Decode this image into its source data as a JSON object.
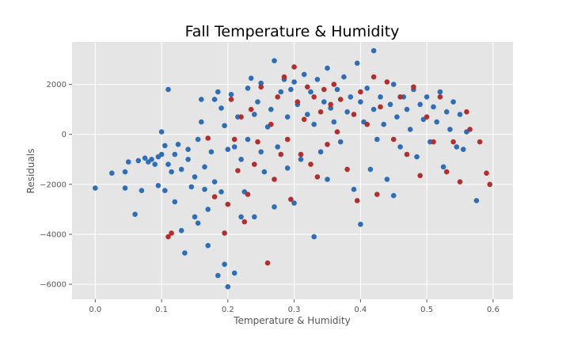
{
  "chart_data": {
    "type": "scatter",
    "title": "Fall Temperature & Humidity",
    "xlabel": "Temperature & Humidity",
    "ylabel": "Residuals",
    "xlim": [
      -0.035,
      0.63
    ],
    "ylim": [
      -6600,
      3700
    ],
    "x_ticks": [
      0.0,
      0.1,
      0.2,
      0.3,
      0.4,
      0.5,
      0.6
    ],
    "x_tick_labels": [
      "0.0",
      "0.1",
      "0.2",
      "0.3",
      "0.4",
      "0.5",
      "0.6"
    ],
    "y_ticks": [
      -6000,
      -4000,
      -2000,
      0,
      2000
    ],
    "y_tick_labels": [
      "−6000",
      "−4000",
      "−2000",
      "0",
      "2000"
    ],
    "grid": true,
    "background": "#e5e5e5",
    "series": [
      {
        "color": "#2f6db5",
        "points": [
          [
            0.0,
            -2150
          ],
          [
            0.025,
            -1550
          ],
          [
            0.045,
            -1500
          ],
          [
            0.045,
            -2150
          ],
          [
            0.05,
            -1100
          ],
          [
            0.06,
            -3200
          ],
          [
            0.065,
            -1050
          ],
          [
            0.07,
            -2250
          ],
          [
            0.075,
            -950
          ],
          [
            0.08,
            -1100
          ],
          [
            0.085,
            -1000
          ],
          [
            0.09,
            -1200
          ],
          [
            0.095,
            -2050
          ],
          [
            0.095,
            -900
          ],
          [
            0.1,
            100
          ],
          [
            0.1,
            -800
          ],
          [
            0.105,
            -2250
          ],
          [
            0.105,
            -450
          ],
          [
            0.11,
            -1200
          ],
          [
            0.11,
            1800
          ],
          [
            0.115,
            -1500
          ],
          [
            0.12,
            -2700
          ],
          [
            0.12,
            -800
          ],
          [
            0.125,
            -400
          ],
          [
            0.13,
            -1400
          ],
          [
            0.13,
            -3850
          ],
          [
            0.135,
            -4750
          ],
          [
            0.14,
            -600
          ],
          [
            0.14,
            -1000
          ],
          [
            0.145,
            -2100
          ],
          [
            0.15,
            -1700
          ],
          [
            0.15,
            -3300
          ],
          [
            0.155,
            -3550
          ],
          [
            0.155,
            -200
          ],
          [
            0.16,
            500
          ],
          [
            0.16,
            1400
          ],
          [
            0.165,
            -2200
          ],
          [
            0.165,
            -1300
          ],
          [
            0.17,
            -4450
          ],
          [
            0.17,
            -3000
          ],
          [
            0.175,
            -700
          ],
          [
            0.18,
            1400
          ],
          [
            0.18,
            -1900
          ],
          [
            0.185,
            -5650
          ],
          [
            0.185,
            1700
          ],
          [
            0.19,
            1050
          ],
          [
            0.19,
            -2300
          ],
          [
            0.195,
            -5200
          ],
          [
            0.195,
            350
          ],
          [
            0.2,
            -6100
          ],
          [
            0.2,
            -600
          ],
          [
            0.205,
            1600
          ],
          [
            0.21,
            -500
          ],
          [
            0.21,
            -5550
          ],
          [
            0.215,
            700
          ],
          [
            0.22,
            -1000
          ],
          [
            0.22,
            -3300
          ],
          [
            0.225,
            -2300
          ],
          [
            0.23,
            1850
          ],
          [
            0.23,
            -200
          ],
          [
            0.235,
            2250
          ],
          [
            0.24,
            -3300
          ],
          [
            0.24,
            800
          ],
          [
            0.245,
            1300
          ],
          [
            0.25,
            -700
          ],
          [
            0.25,
            2050
          ],
          [
            0.255,
            -1500
          ],
          [
            0.26,
            300
          ],
          [
            0.265,
            1000
          ],
          [
            0.27,
            2950
          ],
          [
            0.27,
            -2900
          ],
          [
            0.275,
            -500
          ],
          [
            0.28,
            1700
          ],
          [
            0.285,
            2200
          ],
          [
            0.29,
            -1350
          ],
          [
            0.29,
            700
          ],
          [
            0.295,
            1800
          ],
          [
            0.3,
            2100
          ],
          [
            0.3,
            -2750
          ],
          [
            0.305,
            1200
          ],
          [
            0.31,
            -1000
          ],
          [
            0.315,
            2400
          ],
          [
            0.32,
            800
          ],
          [
            0.325,
            1700
          ],
          [
            0.33,
            -4100
          ],
          [
            0.33,
            400
          ],
          [
            0.335,
            2200
          ],
          [
            0.34,
            -700
          ],
          [
            0.345,
            1300
          ],
          [
            0.35,
            2650
          ],
          [
            0.35,
            -1800
          ],
          [
            0.355,
            1050
          ],
          [
            0.36,
            500
          ],
          [
            0.365,
            1800
          ],
          [
            0.37,
            -300
          ],
          [
            0.375,
            2300
          ],
          [
            0.38,
            900
          ],
          [
            0.385,
            1500
          ],
          [
            0.39,
            -2200
          ],
          [
            0.395,
            2850
          ],
          [
            0.4,
            -3600
          ],
          [
            0.4,
            1300
          ],
          [
            0.405,
            500
          ],
          [
            0.41,
            1850
          ],
          [
            0.415,
            -1400
          ],
          [
            0.42,
            3350
          ],
          [
            0.42,
            1000
          ],
          [
            0.425,
            -200
          ],
          [
            0.43,
            1500
          ],
          [
            0.435,
            400
          ],
          [
            0.44,
            -1800
          ],
          [
            0.445,
            1200
          ],
          [
            0.45,
            -2450
          ],
          [
            0.45,
            2000
          ],
          [
            0.455,
            700
          ],
          [
            0.46,
            -500
          ],
          [
            0.465,
            1500
          ],
          [
            0.47,
            1000
          ],
          [
            0.475,
            200
          ],
          [
            0.48,
            1800
          ],
          [
            0.485,
            -900
          ],
          [
            0.49,
            1200
          ],
          [
            0.495,
            600
          ],
          [
            0.5,
            1500
          ],
          [
            0.505,
            -300
          ],
          [
            0.51,
            1100
          ],
          [
            0.515,
            500
          ],
          [
            0.52,
            1700
          ],
          [
            0.525,
            -1300
          ],
          [
            0.53,
            900
          ],
          [
            0.535,
            200
          ],
          [
            0.54,
            1300
          ],
          [
            0.545,
            -500
          ],
          [
            0.55,
            800
          ],
          [
            0.555,
            -600
          ],
          [
            0.56,
            100
          ],
          [
            0.575,
            -2650
          ]
        ]
      },
      {
        "color": "#b03030",
        "points": [
          [
            0.11,
            -4100
          ],
          [
            0.115,
            -3950
          ],
          [
            0.17,
            -150
          ],
          [
            0.18,
            -2500
          ],
          [
            0.195,
            -3950
          ],
          [
            0.2,
            -2800
          ],
          [
            0.205,
            1400
          ],
          [
            0.21,
            -200
          ],
          [
            0.215,
            -1450
          ],
          [
            0.22,
            700
          ],
          [
            0.225,
            -3500
          ],
          [
            0.23,
            -2400
          ],
          [
            0.235,
            1000
          ],
          [
            0.24,
            -1200
          ],
          [
            0.245,
            -300
          ],
          [
            0.25,
            1900
          ],
          [
            0.26,
            -5150
          ],
          [
            0.265,
            400
          ],
          [
            0.27,
            -1800
          ],
          [
            0.275,
            1500
          ],
          [
            0.28,
            -800
          ],
          [
            0.285,
            2300
          ],
          [
            0.29,
            -200
          ],
          [
            0.295,
            -2600
          ],
          [
            0.3,
            2700
          ],
          [
            0.305,
            1300
          ],
          [
            0.31,
            -800
          ],
          [
            0.315,
            600
          ],
          [
            0.32,
            1900
          ],
          [
            0.325,
            -1200
          ],
          [
            0.33,
            1500
          ],
          [
            0.335,
            -1700
          ],
          [
            0.34,
            900
          ],
          [
            0.345,
            1800
          ],
          [
            0.35,
            -400
          ],
          [
            0.355,
            1200
          ],
          [
            0.36,
            2000
          ],
          [
            0.365,
            100
          ],
          [
            0.37,
            1400
          ],
          [
            0.38,
            -1400
          ],
          [
            0.39,
            800
          ],
          [
            0.395,
            -2650
          ],
          [
            0.4,
            1700
          ],
          [
            0.41,
            400
          ],
          [
            0.42,
            2300
          ],
          [
            0.425,
            -2400
          ],
          [
            0.43,
            1100
          ],
          [
            0.44,
            2100
          ],
          [
            0.45,
            -200
          ],
          [
            0.46,
            1500
          ],
          [
            0.47,
            -800
          ],
          [
            0.48,
            1900
          ],
          [
            0.49,
            -1650
          ],
          [
            0.5,
            700
          ],
          [
            0.51,
            -300
          ],
          [
            0.52,
            1500
          ],
          [
            0.53,
            -1500
          ],
          [
            0.54,
            -300
          ],
          [
            0.55,
            -1900
          ],
          [
            0.56,
            900
          ],
          [
            0.565,
            200
          ],
          [
            0.58,
            -300
          ],
          [
            0.59,
            -1550
          ],
          [
            0.595,
            -2000
          ]
        ]
      }
    ]
  }
}
